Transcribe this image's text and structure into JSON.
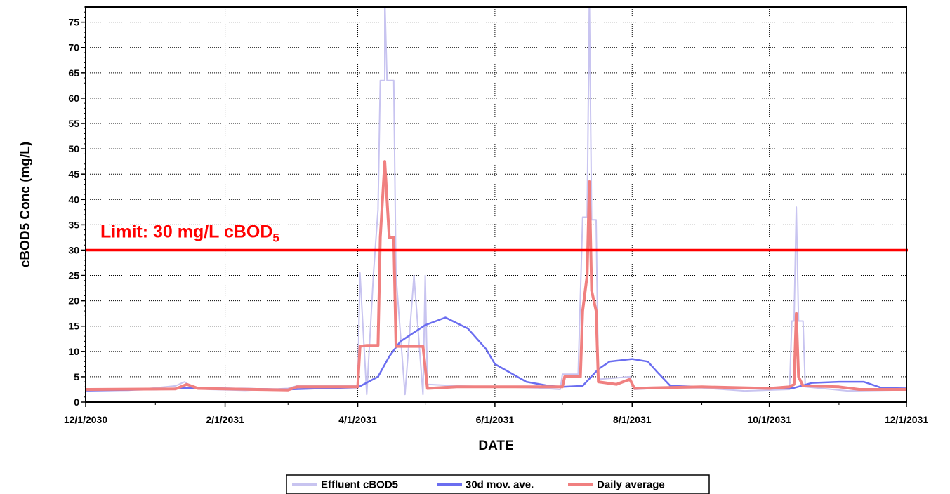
{
  "chart_data": {
    "type": "line",
    "xlabel": "DATE",
    "ylabel": "cBOD5 Conc (mg/L)",
    "ylim": [
      0,
      78
    ],
    "yticks": [
      0,
      5,
      10,
      15,
      20,
      25,
      30,
      35,
      40,
      45,
      50,
      55,
      60,
      65,
      70,
      75
    ],
    "x_range": [
      "2030-12-01",
      "2031-12-01"
    ],
    "xticks": [
      {
        "date": "2030-12-01",
        "label": "12/1/2030"
      },
      {
        "date": "2031-02-01",
        "label": "2/1/2031"
      },
      {
        "date": "2031-04-01",
        "label": "4/1/2031"
      },
      {
        "date": "2031-06-01",
        "label": "6/1/2031"
      },
      {
        "date": "2031-08-01",
        "label": "8/1/2031"
      },
      {
        "date": "2031-10-01",
        "label": "10/1/2031"
      },
      {
        "date": "2031-12-01",
        "label": "12/1/2031"
      }
    ],
    "grid": true,
    "legend_position": "bottom",
    "limit": {
      "value": 30,
      "label_main": "Limit: 30 mg/L cBOD",
      "label_sub": "5",
      "color": "#ff0000"
    },
    "series": [
      {
        "name": "Effluent cBOD5",
        "color": "#c8c4f0",
        "points": [
          [
            "2030-12-01",
            2.2
          ],
          [
            "2030-12-20",
            2.3
          ],
          [
            "2031-01-01",
            2.8
          ],
          [
            "2031-01-10",
            3.2
          ],
          [
            "2031-01-14",
            4.0
          ],
          [
            "2031-01-18",
            2.8
          ],
          [
            "2031-01-25",
            2.5
          ],
          [
            "2031-02-10",
            2.3
          ],
          [
            "2031-03-01",
            2.7
          ],
          [
            "2031-03-05",
            3.2
          ],
          [
            "2031-03-20",
            3.3
          ],
          [
            "2031-04-01",
            3.3
          ],
          [
            "2031-04-02",
            25.5
          ],
          [
            "2031-04-05",
            1.5
          ],
          [
            "2031-04-08",
            25.5
          ],
          [
            "2031-04-10",
            38
          ],
          [
            "2031-04-11",
            63.5
          ],
          [
            "2031-04-13",
            63.5
          ],
          [
            "2031-04-13",
            80
          ],
          [
            "2031-04-14",
            63.5
          ],
          [
            "2031-04-17",
            63.5
          ],
          [
            "2031-04-18",
            25
          ],
          [
            "2031-04-22",
            1.5
          ],
          [
            "2031-04-26",
            25
          ],
          [
            "2031-04-30",
            1.5
          ],
          [
            "2031-05-01",
            25
          ],
          [
            "2031-05-02",
            3.5
          ],
          [
            "2031-05-15",
            3.2
          ],
          [
            "2031-06-01",
            3.0
          ],
          [
            "2031-06-20",
            2.8
          ],
          [
            "2031-06-30",
            2.5
          ],
          [
            "2031-07-01",
            5.5
          ],
          [
            "2031-07-08",
            5.5
          ],
          [
            "2031-07-10",
            36.5
          ],
          [
            "2031-07-12",
            36.5
          ],
          [
            "2031-07-13",
            80
          ],
          [
            "2031-07-14",
            36
          ],
          [
            "2031-07-16",
            36
          ],
          [
            "2031-07-17",
            4.5
          ],
          [
            "2031-07-31",
            5
          ],
          [
            "2031-08-02",
            2.5
          ],
          [
            "2031-08-15",
            2.8
          ],
          [
            "2031-09-01",
            2.8
          ],
          [
            "2031-09-20",
            2.2
          ],
          [
            "2031-10-10",
            2.5
          ],
          [
            "2031-10-11",
            16
          ],
          [
            "2031-10-12",
            16
          ],
          [
            "2031-10-13",
            38.5
          ],
          [
            "2031-10-14",
            16
          ],
          [
            "2031-10-16",
            16
          ],
          [
            "2031-10-17",
            3
          ],
          [
            "2031-11-05",
            2.2
          ],
          [
            "2031-12-01",
            2.4
          ]
        ]
      },
      {
        "name": "30d mov. ave.",
        "color": "#6b6ef0",
        "points": [
          [
            "2030-12-01",
            2.3
          ],
          [
            "2031-01-01",
            2.5
          ],
          [
            "2031-01-15",
            2.8
          ],
          [
            "2031-02-01",
            2.7
          ],
          [
            "2031-02-15",
            2.6
          ],
          [
            "2031-03-01",
            2.5
          ],
          [
            "2031-03-15",
            2.7
          ],
          [
            "2031-04-01",
            2.9
          ],
          [
            "2031-04-10",
            5
          ],
          [
            "2031-04-15",
            9
          ],
          [
            "2031-04-20",
            12
          ],
          [
            "2031-05-01",
            15.2
          ],
          [
            "2031-05-10",
            16.7
          ],
          [
            "2031-05-20",
            14.5
          ],
          [
            "2031-05-28",
            10.5
          ],
          [
            "2031-06-01",
            7.5
          ],
          [
            "2031-06-05",
            6.5
          ],
          [
            "2031-06-15",
            4.0
          ],
          [
            "2031-06-25",
            3.2
          ],
          [
            "2031-07-01",
            3.0
          ],
          [
            "2031-07-10",
            3.2
          ],
          [
            "2031-07-17",
            6.5
          ],
          [
            "2031-07-22",
            8.0
          ],
          [
            "2031-08-01",
            8.5
          ],
          [
            "2031-08-08",
            8.0
          ],
          [
            "2031-08-12",
            6.0
          ],
          [
            "2031-08-18",
            3.2
          ],
          [
            "2031-09-01",
            3.0
          ],
          [
            "2031-09-15",
            2.8
          ],
          [
            "2031-10-01",
            2.7
          ],
          [
            "2031-10-12",
            2.8
          ],
          [
            "2031-10-20",
            3.8
          ],
          [
            "2031-11-01",
            4.0
          ],
          [
            "2031-11-12",
            4.0
          ],
          [
            "2031-11-20",
            2.8
          ],
          [
            "2031-12-01",
            2.7
          ]
        ]
      },
      {
        "name": "Daily average",
        "color": "#f08080",
        "points": [
          [
            "2030-12-01",
            2.5
          ],
          [
            "2031-01-10",
            2.6
          ],
          [
            "2031-01-15",
            3.5
          ],
          [
            "2031-01-20",
            2.7
          ],
          [
            "2031-02-01",
            2.6
          ],
          [
            "2031-02-15",
            2.5
          ],
          [
            "2031-03-01",
            2.4
          ],
          [
            "2031-03-05",
            3.0
          ],
          [
            "2031-04-01",
            3.0
          ],
          [
            "2031-04-02",
            11.0
          ],
          [
            "2031-04-05",
            11.2
          ],
          [
            "2031-04-10",
            11.2
          ],
          [
            "2031-04-11",
            32.5
          ],
          [
            "2031-04-13",
            47.5
          ],
          [
            "2031-04-15",
            32.5
          ],
          [
            "2031-04-17",
            32.5
          ],
          [
            "2031-04-18",
            11.0
          ],
          [
            "2031-04-30",
            11.0
          ],
          [
            "2031-05-02",
            2.7
          ],
          [
            "2031-05-15",
            3.0
          ],
          [
            "2031-06-01",
            3.0
          ],
          [
            "2031-07-01",
            3.0
          ],
          [
            "2031-07-02",
            5.0
          ],
          [
            "2031-07-09",
            5.0
          ],
          [
            "2031-07-10",
            18
          ],
          [
            "2031-07-12",
            25
          ],
          [
            "2031-07-13",
            43.5
          ],
          [
            "2031-07-14",
            22
          ],
          [
            "2031-07-16",
            18
          ],
          [
            "2031-07-17",
            4.0
          ],
          [
            "2031-07-25",
            3.5
          ],
          [
            "2031-07-31",
            4.5
          ],
          [
            "2031-08-02",
            2.7
          ],
          [
            "2031-08-10",
            2.8
          ],
          [
            "2031-09-01",
            3.0
          ],
          [
            "2031-10-01",
            2.7
          ],
          [
            "2031-10-10",
            3.0
          ],
          [
            "2031-10-12",
            3.5
          ],
          [
            "2031-10-13",
            17.5
          ],
          [
            "2031-10-14",
            5.0
          ],
          [
            "2031-10-16",
            3.2
          ],
          [
            "2031-11-01",
            3.0
          ],
          [
            "2031-11-10",
            2.5
          ],
          [
            "2031-12-01",
            2.5
          ]
        ]
      }
    ]
  }
}
